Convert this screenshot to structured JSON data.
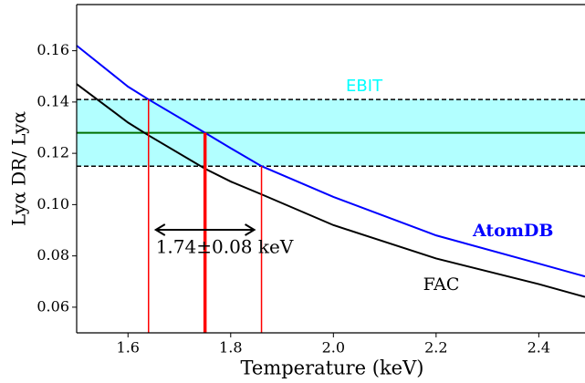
{
  "chart_data": {
    "type": "line",
    "xlabel": "Temperature (keV)",
    "ylabel": "Lyα DR/ Lyα",
    "x": [
      1.5,
      1.6,
      1.64,
      1.75,
      1.8,
      1.86,
      2.0,
      2.2,
      2.4,
      2.49
    ],
    "series": [
      {
        "name": "AtomDB",
        "color": "#0000ff",
        "values": [
          0.162,
          0.146,
          0.141,
          0.128,
          0.122,
          0.115,
          0.103,
          0.088,
          0.077,
          0.072
        ]
      },
      {
        "name": "FAC",
        "color": "#000000",
        "values": [
          0.147,
          0.132,
          0.127,
          0.114,
          0.109,
          0.104,
          0.092,
          0.079,
          0.069,
          0.064
        ]
      }
    ],
    "band": {
      "name": "EBIT",
      "color": "#00ffff",
      "range": [
        0.115,
        0.141
      ],
      "center": 0.128
    },
    "markers": [
      1.64,
      1.75,
      1.86
    ],
    "annotation": "1.74±0.08 keV",
    "xlim": [
      1.5,
      2.49
    ],
    "ylim": [
      0.05,
      0.178
    ],
    "xticks": [
      1.6,
      1.8,
      {
        "value": 2,
        "label": "2.0"
      },
      2.2,
      2.4
    ],
    "yticks": [
      0.06,
      0.08,
      {
        "value": 0.1,
        "label": "0.10"
      },
      0.12,
      0.14,
      0.16
    ]
  }
}
